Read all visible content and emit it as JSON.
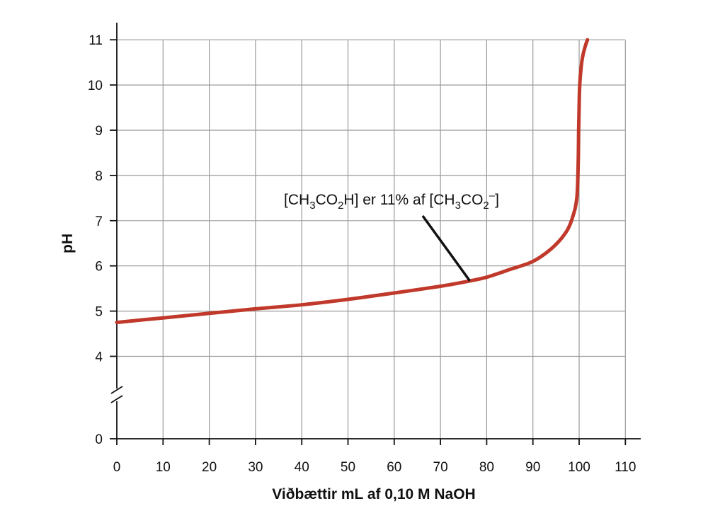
{
  "chart_data": {
    "type": "line",
    "xlabel": "Viðbættir mL af 0,10 M NaOH",
    "ylabel": "pH",
    "xlim": [
      0,
      110
    ],
    "ylim": [
      0,
      11
    ],
    "y_axis_break": [
      0,
      4
    ],
    "x_ticks": [
      "0",
      "10",
      "20",
      "30",
      "40",
      "50",
      "60",
      "70",
      "80",
      "90",
      "100",
      "110"
    ],
    "y_ticks": [
      "0",
      "4",
      "5",
      "6",
      "7",
      "8",
      "9",
      "10",
      "11"
    ],
    "grid": true,
    "line_color": "#c0392b",
    "series": [
      {
        "x": [
          0,
          10,
          20,
          30,
          40,
          50,
          60,
          70,
          76.5,
          80,
          85,
          90,
          94,
          97,
          98.5,
          99.5,
          99.8,
          99.9,
          100,
          100.1,
          100.3,
          100.7,
          101.3,
          101.8
        ],
        "y": [
          4.75,
          4.85,
          4.95,
          5.05,
          5.14,
          5.26,
          5.4,
          5.55,
          5.67,
          5.75,
          5.92,
          6.1,
          6.38,
          6.72,
          7.05,
          7.5,
          8.3,
          9.0,
          9.55,
          9.95,
          10.25,
          10.6,
          10.85,
          11.0
        ]
      }
    ],
    "annotation": {
      "pre1": "[CH",
      "sub1": "3",
      "mid1": "CO",
      "sub2": "2",
      "mid2": "H] er 11% af [CH",
      "sub3": "3",
      "mid3": "CO",
      "sub4": "2",
      "sup1": "–",
      "post": "]",
      "point": [
        76.5,
        5.67
      ]
    }
  }
}
